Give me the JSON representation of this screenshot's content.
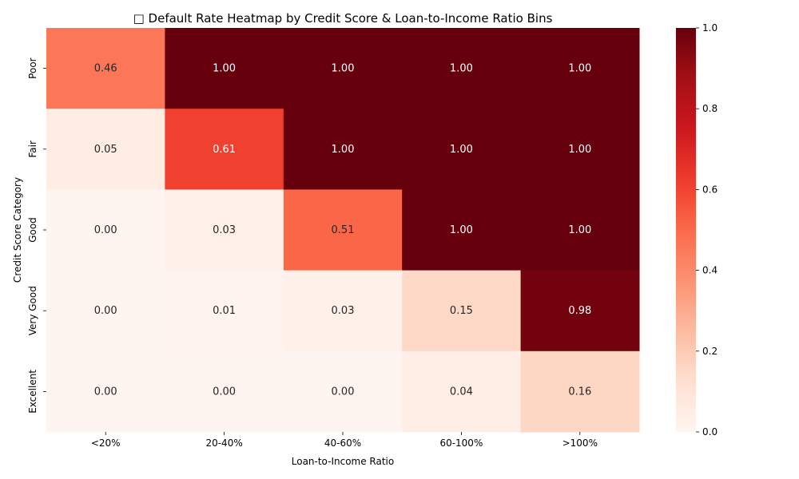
{
  "chart_data": {
    "type": "heatmap",
    "title": "□ Default Rate Heatmap by Credit Score & Loan-to-Income Ratio Bins",
    "xlabel": "Loan-to-Income Ratio",
    "ylabel": "Credit Score Category",
    "x_categories": [
      "<20%",
      "20-40%",
      "40-60%",
      "60-100%",
      ">100%"
    ],
    "y_categories": [
      "Poor",
      "Fair",
      "Good",
      "Very Good",
      "Excellent"
    ],
    "values": [
      [
        0.46,
        1.0,
        1.0,
        1.0,
        1.0
      ],
      [
        0.05,
        0.61,
        1.0,
        1.0,
        1.0
      ],
      [
        0.0,
        0.03,
        0.51,
        1.0,
        1.0
      ],
      [
        0.0,
        0.01,
        0.03,
        0.15,
        0.98
      ],
      [
        0.0,
        0.0,
        0.0,
        0.04,
        0.16
      ]
    ],
    "colorbar": {
      "range": [
        0,
        1
      ],
      "ticks": [
        "0.0",
        "0.2",
        "0.4",
        "0.6",
        "0.8",
        "1.0"
      ],
      "tick_values": [
        0,
        0.2,
        0.4,
        0.6,
        0.8,
        1.0
      ]
    },
    "colormap": "Reds",
    "annotation_format": "2 decimals",
    "colors": {
      "dark_text": "#262626",
      "light_text": "#ffffff"
    }
  }
}
